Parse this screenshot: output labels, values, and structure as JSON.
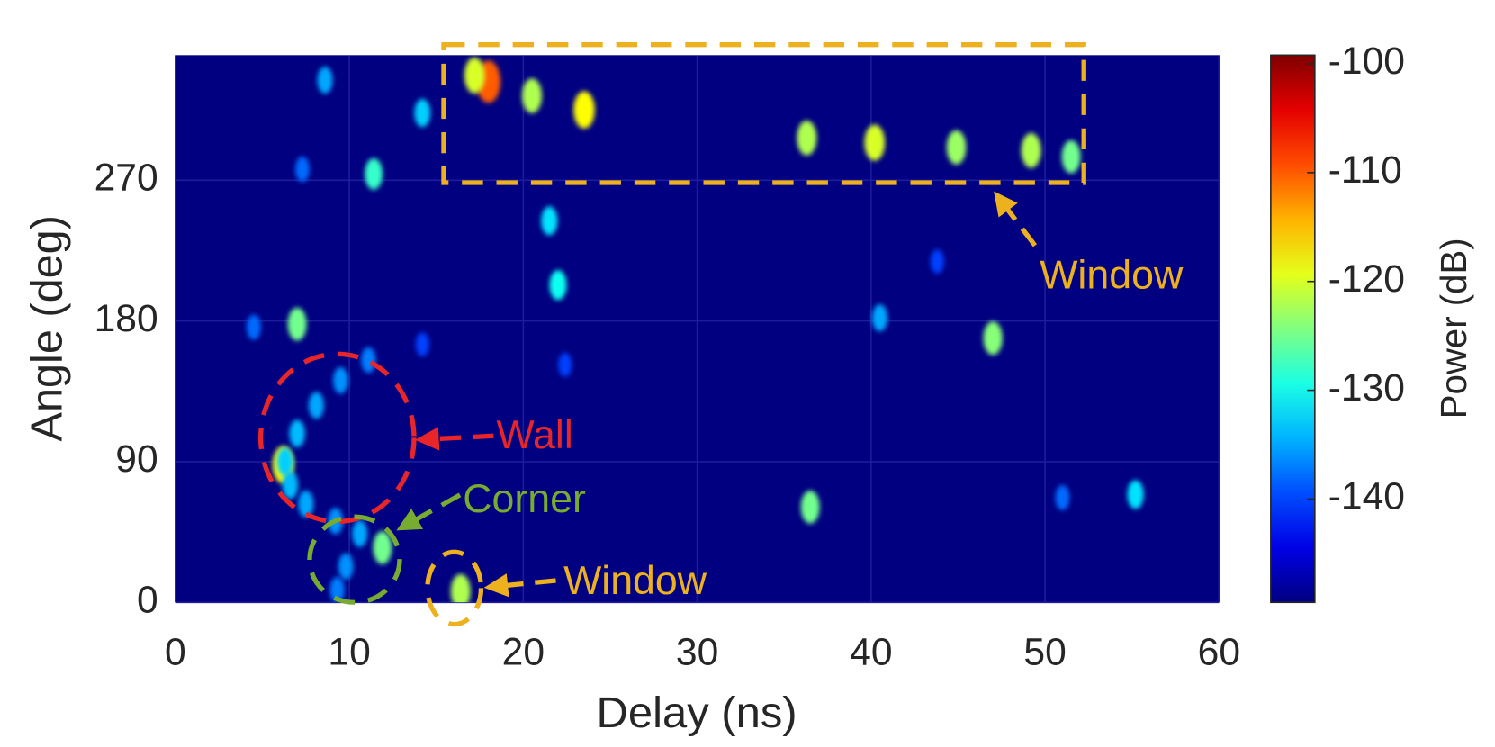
{
  "chart_data": {
    "type": "heatmap",
    "xlabel": "Delay (ns)",
    "ylabel": "Angle (deg)",
    "xlim": [
      0,
      60
    ],
    "xticks": [
      0,
      10,
      20,
      30,
      40,
      50,
      60
    ],
    "ylim": [
      0,
      350
    ],
    "yticks": [
      0,
      90,
      180,
      270
    ],
    "grid": true,
    "x": [
      18.0,
      17.2,
      20.5,
      23.5,
      36.3,
      40.2,
      44.9,
      49.2,
      51.5,
      8.6,
      14.2,
      11.4,
      7.3,
      21.5,
      22.0,
      7.0,
      4.5,
      47.0,
      40.5,
      36.5,
      55.2,
      51.0,
      16.4,
      11.9,
      6.2,
      22.4,
      14.2,
      43.8,
      11.1,
      9.5,
      8.1,
      7.0,
      6.3,
      6.6,
      7.5,
      9.2,
      10.6,
      9.8,
      9.3
    ],
    "y": [
      333,
      337,
      324,
      315,
      297,
      294,
      291,
      289,
      285,
      334,
      313,
      274,
      277,
      244,
      203,
      178,
      176,
      169,
      182,
      61,
      69,
      67,
      7,
      35,
      88,
      152,
      165,
      218,
      155,
      142,
      126,
      108,
      90,
      75,
      63,
      52,
      44,
      23,
      8
    ],
    "values": [
      -110,
      -120,
      -122,
      -118,
      -122,
      -120,
      -123,
      -122,
      -125,
      -135,
      -133,
      -128,
      -138,
      -132,
      -130,
      -125,
      -138,
      -124,
      -135,
      -125,
      -132,
      -138,
      -122,
      -125,
      -118,
      -140,
      -140,
      -140,
      -137,
      -136,
      -135,
      -134,
      -133,
      -134,
      -135,
      -136,
      -135,
      -136,
      -137
    ],
    "colorbar": {
      "label": "Power (dB)",
      "lim": [
        -149.5,
        -99.2
      ],
      "ticks": [
        -100,
        -110,
        -120,
        -130,
        -140
      ]
    },
    "annotations": [
      {
        "text": "Window",
        "color": "#edb120"
      },
      {
        "text": "Wall",
        "color": "#e8262a"
      },
      {
        "text": "Corner",
        "color": "#77ac30"
      },
      {
        "text": "Window",
        "color": "#edb120"
      }
    ]
  }
}
